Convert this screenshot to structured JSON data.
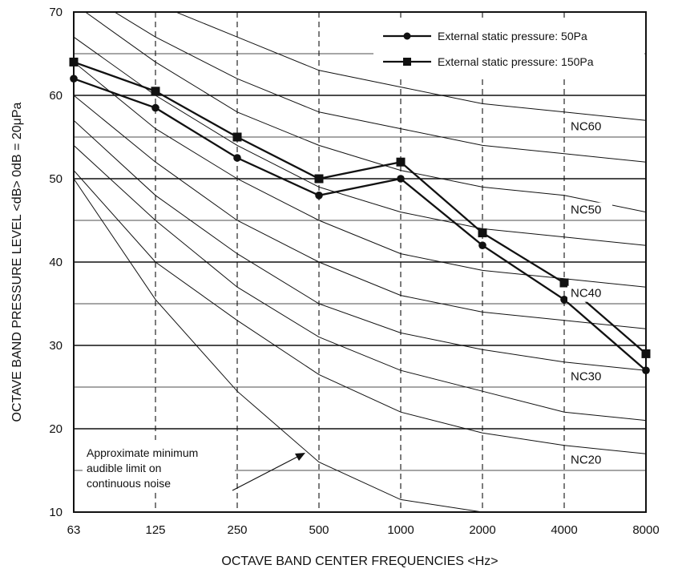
{
  "chart_data": {
    "type": "line",
    "title": "",
    "xlabel": "OCTAVE BAND CENTER FREQUENCIES <Hz>",
    "ylabel": "OCTAVE BAND PRESSURE LEVEL <dB> 0dB = 20μPa",
    "x": [
      63,
      125,
      250,
      500,
      1000,
      2000,
      4000,
      8000
    ],
    "x_tick_labels": [
      "63",
      "125",
      "250",
      "500",
      "1000",
      "2000",
      "4000",
      "8000"
    ],
    "x_scale": "log",
    "y_ticks": [
      "10",
      "20",
      "30",
      "40",
      "50",
      "60",
      "70"
    ],
    "ylim": [
      10,
      70
    ],
    "grid": "horizontal solid at 5 dB steps, vertical dashed at each octave band",
    "legend_position": "top-right",
    "series": [
      {
        "name": "External static pressure: 50Pa",
        "marker": "circle",
        "values": [
          62,
          58.5,
          52.5,
          48,
          50,
          42,
          35.5,
          27
        ]
      },
      {
        "name": "External static pressure: 150Pa",
        "marker": "square",
        "values": [
          64,
          60.5,
          55,
          50,
          52,
          43.5,
          37.5,
          29
        ]
      }
    ],
    "nc_curves": [
      {
        "label": "NC60",
        "values": [
          77,
          71,
          67,
          63,
          61,
          59,
          58,
          57
        ]
      },
      {
        "label": "",
        "values": [
          73,
          67,
          62,
          58,
          56,
          54,
          53,
          52
        ]
      },
      {
        "label": "NC50",
        "values": [
          71,
          64,
          58,
          54,
          51,
          49,
          48,
          46
        ]
      },
      {
        "label": "",
        "values": [
          67,
          60,
          54,
          49,
          46,
          44,
          43,
          42
        ]
      },
      {
        "label": "NC40",
        "values": [
          64,
          56,
          50,
          45,
          41,
          39,
          38,
          37
        ]
      },
      {
        "label": "",
        "values": [
          60,
          52,
          45,
          40,
          36,
          34,
          33,
          32
        ]
      },
      {
        "label": "NC30",
        "values": [
          57,
          48,
          41,
          35,
          31.5,
          29.5,
          28,
          27
        ]
      },
      {
        "label": "",
        "values": [
          54,
          45,
          37,
          31,
          27,
          24.5,
          22,
          21
        ]
      },
      {
        "label": "NC20",
        "values": [
          51,
          40,
          33,
          26.5,
          22,
          19.5,
          18,
          17
        ]
      },
      {
        "label": "",
        "values": [
          50,
          35.5,
          24.5,
          16,
          11.5,
          10,
          10,
          10
        ]
      }
    ],
    "annotation": {
      "lines": [
        "Approximate minimum",
        "audible limit on",
        "continuous noise"
      ]
    }
  }
}
